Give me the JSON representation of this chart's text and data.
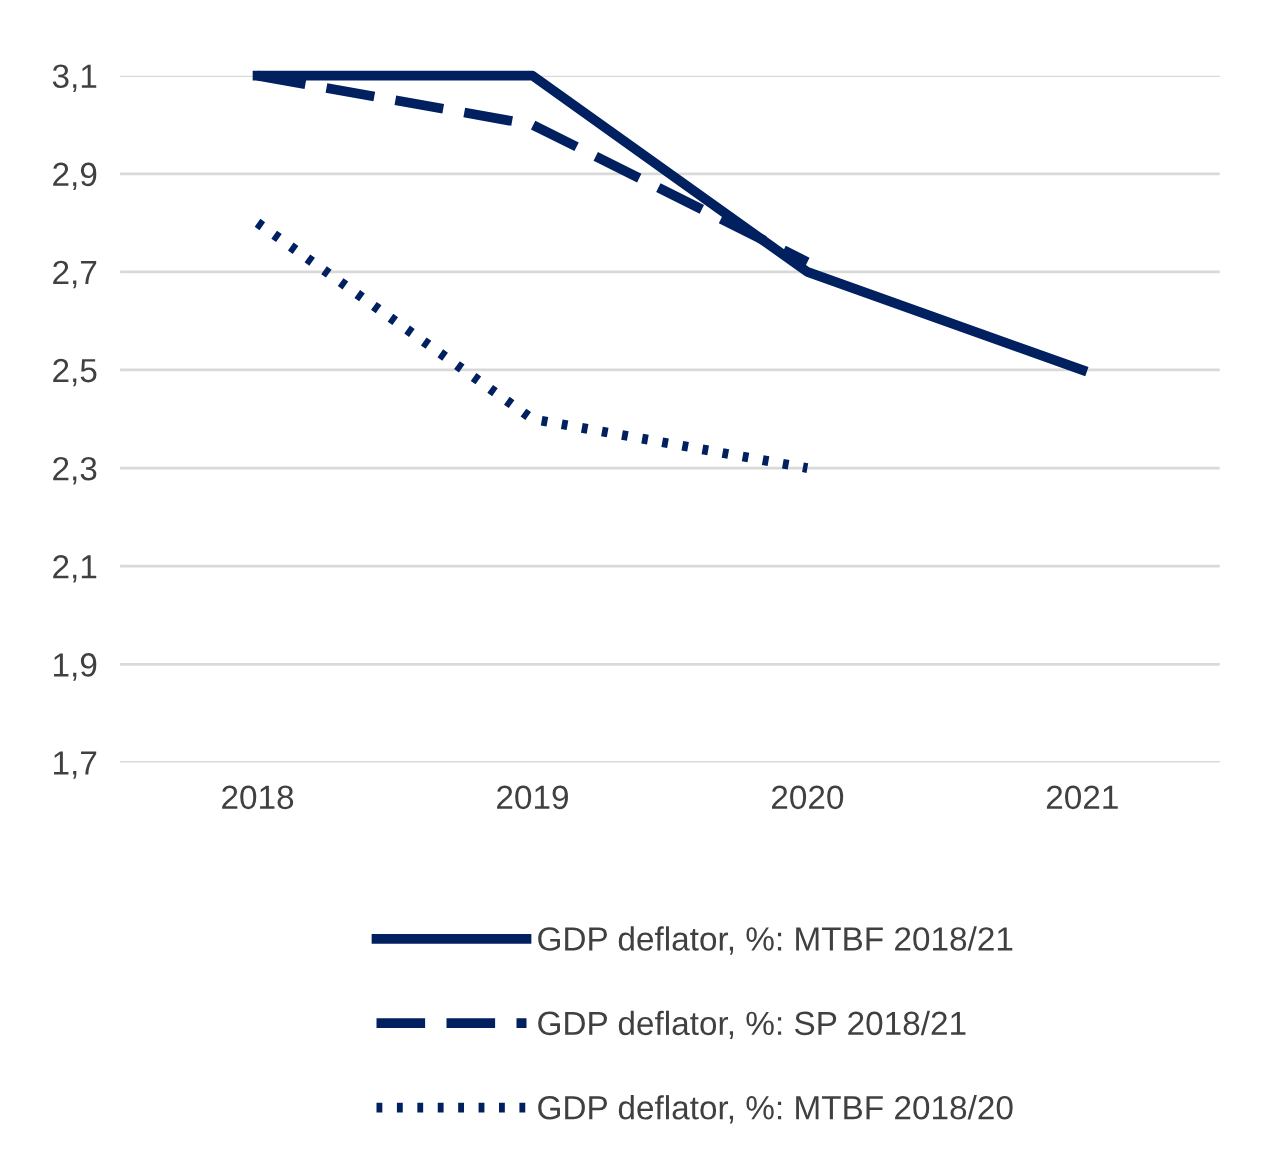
{
  "chart_data": {
    "type": "line",
    "categories": [
      "2018",
      "2019",
      "2020",
      "2021"
    ],
    "series": [
      {
        "name": "GDP deflator, %: MTBF 2018/21",
        "color": "#002060",
        "values": [
          3.1,
          3.1,
          2.7,
          2.5
        ],
        "line_style": "solid"
      },
      {
        "name": "GDP deflator, %: SP 2018/21",
        "color": "#002060",
        "values": [
          3.1,
          3.0,
          2.72,
          null
        ],
        "line_style": "dashed"
      },
      {
        "name": "GDP deflator, %: MTBF 2018/20",
        "color": "#002060",
        "values": [
          2.8,
          2.4,
          2.3,
          null
        ],
        "line_style": "dotted"
      }
    ],
    "ylim": [
      1.7,
      3.1
    ],
    "yticks": [
      {
        "value": 1.7,
        "label": "1,7"
      },
      {
        "value": 1.9,
        "label": "1,9"
      },
      {
        "value": 2.1,
        "label": "2,1"
      },
      {
        "value": 2.3,
        "label": "2,3"
      },
      {
        "value": 2.5,
        "label": "2,5"
      },
      {
        "value": 2.7,
        "label": "2,7"
      },
      {
        "value": 2.9,
        "label": "2,9"
      },
      {
        "value": 3.1,
        "label": "3,1"
      }
    ],
    "grid": "y",
    "legend": "bottom",
    "marker": "none"
  }
}
